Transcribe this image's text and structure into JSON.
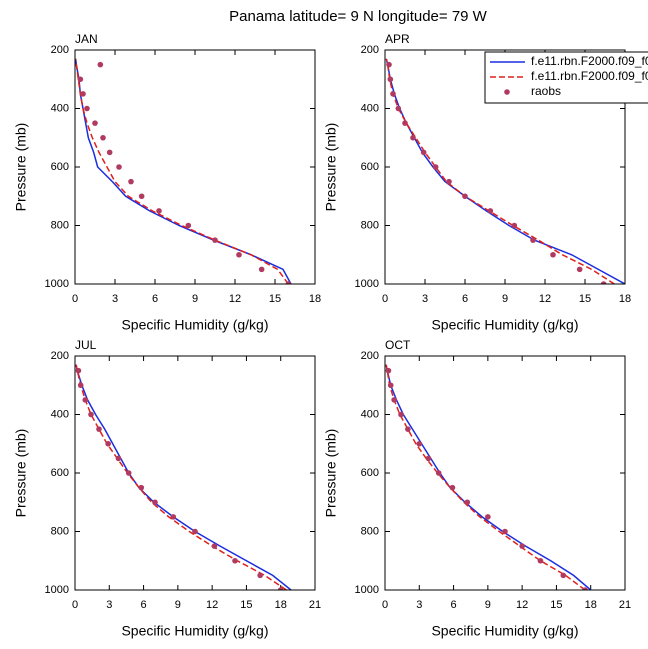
{
  "title": "Panama  latitude= 9 N longitude= 79 W",
  "chart_data": [
    {
      "type": "line",
      "title": "JAN",
      "xlabel": "Specific Humidity (g/kg)",
      "ylabel": "Pressure (mb)",
      "xlim": [
        0,
        18
      ],
      "xticks": [
        0,
        3,
        6,
        9,
        12,
        15,
        18
      ],
      "ylim": [
        1000,
        200
      ],
      "yticks": [
        200,
        400,
        600,
        800,
        1000
      ],
      "series": [
        {
          "color": "#1a2ee0",
          "style": "solid",
          "y": [
            1000,
            950,
            900,
            850,
            800,
            750,
            700,
            650,
            600,
            550,
            500,
            450,
            400,
            350,
            300,
            250,
            230
          ],
          "x": [
            16.2,
            15.6,
            13.2,
            10.4,
            7.8,
            5.6,
            3.8,
            2.8,
            1.7,
            1.4,
            1.0,
            0.8,
            0.6,
            0.4,
            0.3,
            0.1,
            0.05
          ]
        },
        {
          "color": "#e0201a",
          "style": "dash",
          "y": [
            1000,
            950,
            900,
            850,
            800,
            750,
            700,
            650,
            600,
            550,
            500,
            450,
            400,
            350,
            300,
            250,
            230
          ],
          "x": [
            16.0,
            15.2,
            13.2,
            10.5,
            8.0,
            5.8,
            4.0,
            3.0,
            2.4,
            1.8,
            1.3,
            0.9,
            0.6,
            0.4,
            0.25,
            0.1,
            0.05
          ]
        },
        {
          "color": "#b03a60",
          "style": "dot",
          "y": [
            1000,
            950,
            900,
            850,
            800,
            750,
            700,
            650,
            600,
            550,
            500,
            450,
            400,
            350,
            300,
            250
          ],
          "x": [
            16.0,
            14.0,
            12.3,
            10.5,
            8.5,
            6.3,
            5.0,
            4.2,
            3.3,
            2.6,
            2.1,
            1.5,
            0.9,
            0.6,
            0.4,
            1.9
          ]
        }
      ]
    },
    {
      "type": "line",
      "title": "APR",
      "xlabel": "Specific Humidity (g/kg)",
      "ylabel": "Pressure (mb)",
      "xlim": [
        0,
        18
      ],
      "xticks": [
        0,
        3,
        6,
        9,
        12,
        15,
        18
      ],
      "ylim": [
        1000,
        200
      ],
      "yticks": [
        200,
        400,
        600,
        800,
        1000
      ],
      "legend": "top-right",
      "series": [
        {
          "name": "f.e11.rbn.F2000.f09_f0",
          "color": "#1a2ee0",
          "style": "solid",
          "y": [
            1000,
            950,
            900,
            850,
            800,
            750,
            700,
            650,
            600,
            550,
            500,
            450,
            400,
            350,
            300,
            250,
            230
          ],
          "x": [
            18.0,
            16.0,
            14.0,
            11.2,
            9.3,
            7.6,
            6.0,
            4.5,
            3.6,
            2.8,
            2.2,
            1.6,
            1.1,
            0.7,
            0.4,
            0.2,
            0.1
          ]
        },
        {
          "name": "f.e11.rbn.F2000.f09_f0",
          "color": "#e0201a",
          "style": "dash",
          "y": [
            1000,
            950,
            900,
            850,
            800,
            750,
            700,
            650,
            600,
            550,
            500,
            450,
            400,
            350,
            300,
            250,
            230
          ],
          "x": [
            17.2,
            15.5,
            13.3,
            11.5,
            9.6,
            7.8,
            6.0,
            4.6,
            3.8,
            3.0,
            2.3,
            1.6,
            1.0,
            0.6,
            0.35,
            0.2,
            0.1
          ]
        },
        {
          "name": "raobs",
          "color": "#b03a60",
          "style": "dot",
          "y": [
            1000,
            950,
            900,
            850,
            800,
            750,
            700,
            650,
            600,
            550,
            500,
            450,
            400,
            350,
            300,
            250
          ],
          "x": [
            16.4,
            14.6,
            12.6,
            11.1,
            9.7,
            7.9,
            6.0,
            4.8,
            3.8,
            2.9,
            2.1,
            1.5,
            1.0,
            0.6,
            0.4,
            0.3
          ]
        }
      ]
    },
    {
      "type": "line",
      "title": "JUL",
      "xlabel": "Specific Humidity (g/kg)",
      "ylabel": "Pressure (mb)",
      "xlim": [
        0,
        21
      ],
      "xticks": [
        0,
        3,
        6,
        9,
        12,
        15,
        18,
        21
      ],
      "ylim": [
        1000,
        200
      ],
      "yticks": [
        200,
        400,
        600,
        800,
        1000
      ],
      "series": [
        {
          "color": "#1a2ee0",
          "style": "solid",
          "y": [
            1000,
            950,
            900,
            850,
            800,
            750,
            700,
            650,
            600,
            550,
            500,
            450,
            400,
            350,
            300,
            250,
            230
          ],
          "x": [
            18.9,
            17.3,
            15.0,
            12.7,
            10.5,
            8.6,
            6.9,
            5.6,
            4.7,
            4.0,
            3.3,
            2.6,
            1.8,
            1.1,
            0.6,
            0.2,
            0.1
          ]
        },
        {
          "color": "#e0201a",
          "style": "dash",
          "y": [
            1000,
            950,
            900,
            850,
            800,
            750,
            700,
            650,
            600,
            550,
            500,
            450,
            400,
            350,
            300,
            250,
            230
          ],
          "x": [
            18.5,
            16.6,
            14.2,
            12.0,
            10.0,
            8.2,
            6.7,
            5.6,
            4.6,
            3.7,
            2.8,
            2.1,
            1.4,
            0.9,
            0.5,
            0.2,
            0.1
          ]
        },
        {
          "color": "#b03a60",
          "style": "dot",
          "y": [
            1000,
            950,
            900,
            850,
            800,
            750,
            700,
            650,
            600,
            550,
            500,
            450,
            400,
            350,
            300,
            250
          ],
          "x": [
            18.0,
            16.2,
            14.0,
            12.2,
            10.5,
            8.6,
            7.0,
            5.8,
            4.7,
            3.8,
            2.9,
            2.1,
            1.4,
            0.9,
            0.5,
            0.3
          ]
        }
      ]
    },
    {
      "type": "line",
      "title": "OCT",
      "xlabel": "Specific Humidity (g/kg)",
      "ylabel": "Pressure (mb)",
      "xlim": [
        0,
        21
      ],
      "xticks": [
        0,
        3,
        6,
        9,
        12,
        15,
        18,
        21
      ],
      "ylim": [
        1000,
        200
      ],
      "yticks": [
        200,
        400,
        600,
        800,
        1000
      ],
      "series": [
        {
          "color": "#1a2ee0",
          "style": "solid",
          "y": [
            1000,
            950,
            900,
            850,
            800,
            750,
            700,
            650,
            600,
            550,
            500,
            450,
            400,
            350,
            300,
            250,
            230
          ],
          "x": [
            18.0,
            16.5,
            14.5,
            12.3,
            10.3,
            8.5,
            7.0,
            5.7,
            4.8,
            4.0,
            3.2,
            2.4,
            1.6,
            1.0,
            0.5,
            0.2,
            0.1
          ]
        },
        {
          "color": "#e0201a",
          "style": "dash",
          "y": [
            1000,
            950,
            900,
            850,
            800,
            750,
            700,
            650,
            600,
            550,
            500,
            450,
            400,
            350,
            300,
            250,
            230
          ],
          "x": [
            17.5,
            15.8,
            13.6,
            11.8,
            10.0,
            8.3,
            6.9,
            5.7,
            4.6,
            3.6,
            2.7,
            2.0,
            1.3,
            0.8,
            0.4,
            0.2,
            0.1
          ]
        },
        {
          "color": "#b03a60",
          "style": "dot",
          "y": [
            1000,
            950,
            900,
            850,
            800,
            750,
            700,
            650,
            600,
            550,
            500,
            450,
            400,
            350,
            300,
            250
          ],
          "x": [
            17.5,
            15.6,
            13.6,
            12.0,
            10.5,
            9.0,
            7.2,
            5.9,
            4.7,
            3.8,
            3.0,
            2.0,
            1.4,
            0.8,
            0.5,
            0.3
          ]
        }
      ]
    }
  ]
}
